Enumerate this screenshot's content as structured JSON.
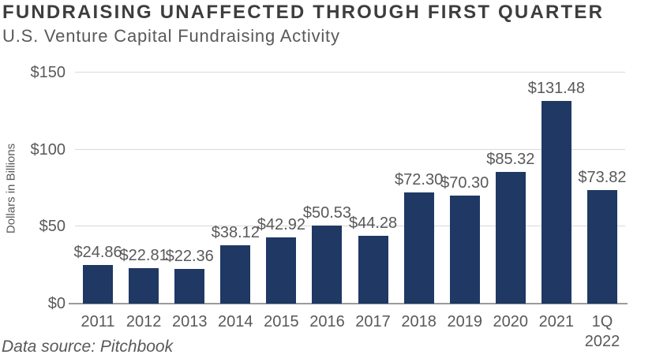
{
  "header": {
    "title": "FUNDRAISING UNAFFECTED THROUGH FIRST QUARTER",
    "subtitle": "U.S. Venture Capital Fundraising Activity"
  },
  "chart_data": {
    "type": "bar",
    "title": "U.S. Venture Capital Fundraising Activity",
    "categories": [
      "2011",
      "2012",
      "2013",
      "2014",
      "2015",
      "2016",
      "2017",
      "2018",
      "2019",
      "2020",
      "2021",
      "1Q\n2022"
    ],
    "values": [
      24.86,
      22.81,
      22.36,
      38.12,
      42.92,
      50.53,
      44.28,
      72.3,
      70.3,
      85.32,
      131.48,
      73.82
    ],
    "value_labels": [
      "$24.86",
      "$22.81",
      "$22.36",
      "$38.12",
      "$42.92",
      "$50.53",
      "$44.28",
      "$72.30",
      "$70.30",
      "$85.32",
      "$131.48",
      "$73.82"
    ],
    "xlabel": "",
    "ylabel": "Dollars in Billions",
    "ylim": [
      0,
      150
    ],
    "y_ticks": [
      {
        "value": 0,
        "label": "$0"
      },
      {
        "value": 50,
        "label": "$50"
      },
      {
        "value": 100,
        "label": "$100"
      },
      {
        "value": 150,
        "label": "$150"
      }
    ],
    "grid": true,
    "legend": "none",
    "bar_color": "#1f3864"
  },
  "footer": {
    "source": "Data source: Pitchbook"
  },
  "colors": {
    "bar": "#1f3864",
    "title_text": "#3d3d3d",
    "body_text": "#595959",
    "gridline": "#d9d9d9",
    "axis_line": "#9b9b9b"
  }
}
